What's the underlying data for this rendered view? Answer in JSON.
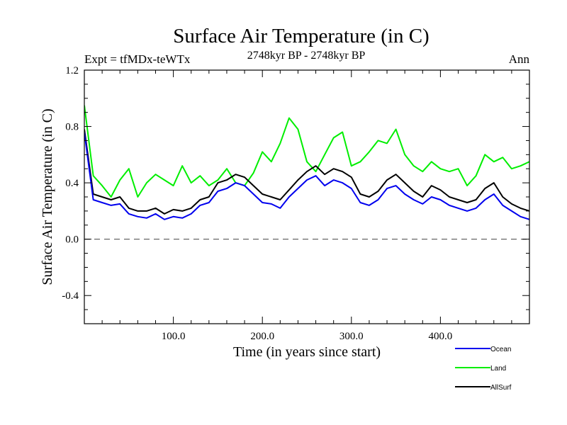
{
  "chart_data": {
    "type": "line",
    "title": "Surface Air Temperature (in C)",
    "subtitle": "2748kyr BP - 2748kyr BP",
    "experiment": "Expt = tfMDx-teWTx",
    "season": "Ann",
    "xlabel": "Time (in years since start)",
    "ylabel": "Surface Air Temperature (in C)",
    "xlim": [
      0,
      500
    ],
    "ylim": [
      -0.6,
      1.2
    ],
    "x_ticks": [
      100,
      200,
      300,
      400
    ],
    "x_tick_labels": [
      "100.0",
      "200.0",
      "300.0",
      "400.0"
    ],
    "y_ticks": [
      -0.4,
      0.0,
      0.4,
      0.8,
      1.2
    ],
    "y_tick_labels": [
      "-0.4",
      "0.0",
      "0.4",
      "0.8",
      "1.2"
    ],
    "reference_line": 0.0,
    "x_step": 10,
    "x_start": 0,
    "series": [
      {
        "name": "Land",
        "color": "#00ee00",
        "values": [
          0.95,
          0.45,
          0.38,
          0.3,
          0.42,
          0.5,
          0.3,
          0.4,
          0.46,
          0.42,
          0.38,
          0.52,
          0.4,
          0.45,
          0.38,
          0.42,
          0.5,
          0.4,
          0.38,
          0.47,
          0.62,
          0.55,
          0.68,
          0.86,
          0.78,
          0.55,
          0.48,
          0.6,
          0.72,
          0.76,
          0.52,
          0.55,
          0.62,
          0.7,
          0.68,
          0.78,
          0.6,
          0.52,
          0.48,
          0.55,
          0.5,
          0.48,
          0.5,
          0.38,
          0.45,
          0.6,
          0.55,
          0.58,
          0.5,
          0.52,
          0.55
        ]
      },
      {
        "name": "AllSurf",
        "color": "#000000",
        "values": [
          0.78,
          0.32,
          0.3,
          0.28,
          0.3,
          0.22,
          0.2,
          0.2,
          0.22,
          0.18,
          0.21,
          0.2,
          0.22,
          0.28,
          0.3,
          0.4,
          0.42,
          0.46,
          0.44,
          0.38,
          0.32,
          0.3,
          0.28,
          0.35,
          0.42,
          0.48,
          0.52,
          0.46,
          0.5,
          0.48,
          0.44,
          0.32,
          0.3,
          0.34,
          0.42,
          0.46,
          0.4,
          0.34,
          0.3,
          0.38,
          0.35,
          0.3,
          0.28,
          0.26,
          0.28,
          0.36,
          0.4,
          0.3,
          0.25,
          0.22,
          0.2
        ]
      },
      {
        "name": "Ocean",
        "color": "#0000ee",
        "values": [
          0.76,
          0.28,
          0.26,
          0.24,
          0.25,
          0.18,
          0.16,
          0.15,
          0.18,
          0.14,
          0.16,
          0.15,
          0.18,
          0.24,
          0.26,
          0.34,
          0.36,
          0.4,
          0.38,
          0.32,
          0.26,
          0.25,
          0.22,
          0.3,
          0.36,
          0.42,
          0.45,
          0.38,
          0.42,
          0.4,
          0.36,
          0.26,
          0.24,
          0.28,
          0.36,
          0.38,
          0.32,
          0.28,
          0.25,
          0.3,
          0.28,
          0.24,
          0.22,
          0.2,
          0.22,
          0.28,
          0.32,
          0.24,
          0.2,
          0.16,
          0.14
        ]
      }
    ],
    "legend_order": [
      "Ocean",
      "Land",
      "AllSurf"
    ]
  }
}
